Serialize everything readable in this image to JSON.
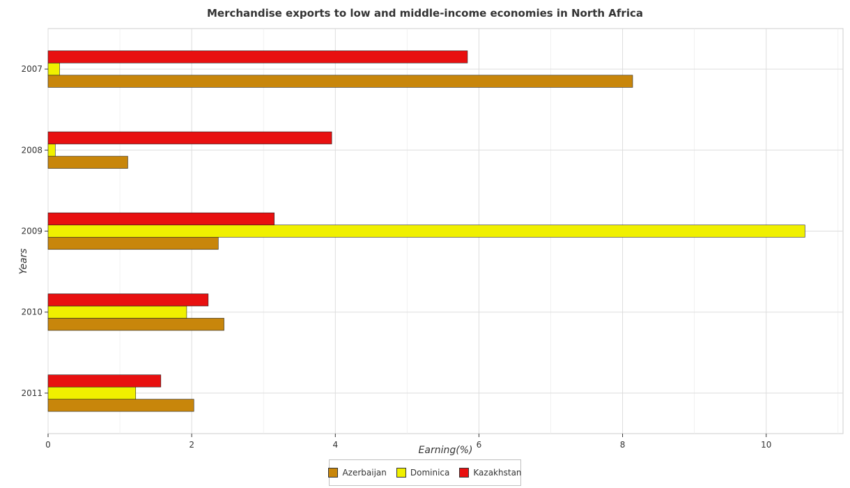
{
  "chart_data": {
    "type": "bar",
    "orientation": "horizontal",
    "title": "Merchandise exports to low and middle-income economies in North Africa",
    "xlabel": "Earning(%)",
    "ylabel": "Years",
    "categories": [
      "2007",
      "2008",
      "2009",
      "2010",
      "2011"
    ],
    "series": [
      {
        "name": "Azerbaijan",
        "color": "#c8860b",
        "values": [
          8.14,
          1.11,
          2.37,
          2.45,
          2.03
        ]
      },
      {
        "name": "Dominica",
        "color": "#f0f000",
        "values": [
          0.16,
          0.1,
          10.54,
          1.93,
          1.22
        ]
      },
      {
        "name": "Kazakhstan",
        "color": "#e81010",
        "values": [
          5.84,
          3.95,
          3.15,
          2.23,
          1.57
        ]
      }
    ],
    "x_ticks": [
      0,
      2,
      4,
      6,
      8,
      10
    ],
    "xlim": [
      0,
      11.07
    ],
    "grid": true,
    "legend_position": "bottom-center"
  }
}
